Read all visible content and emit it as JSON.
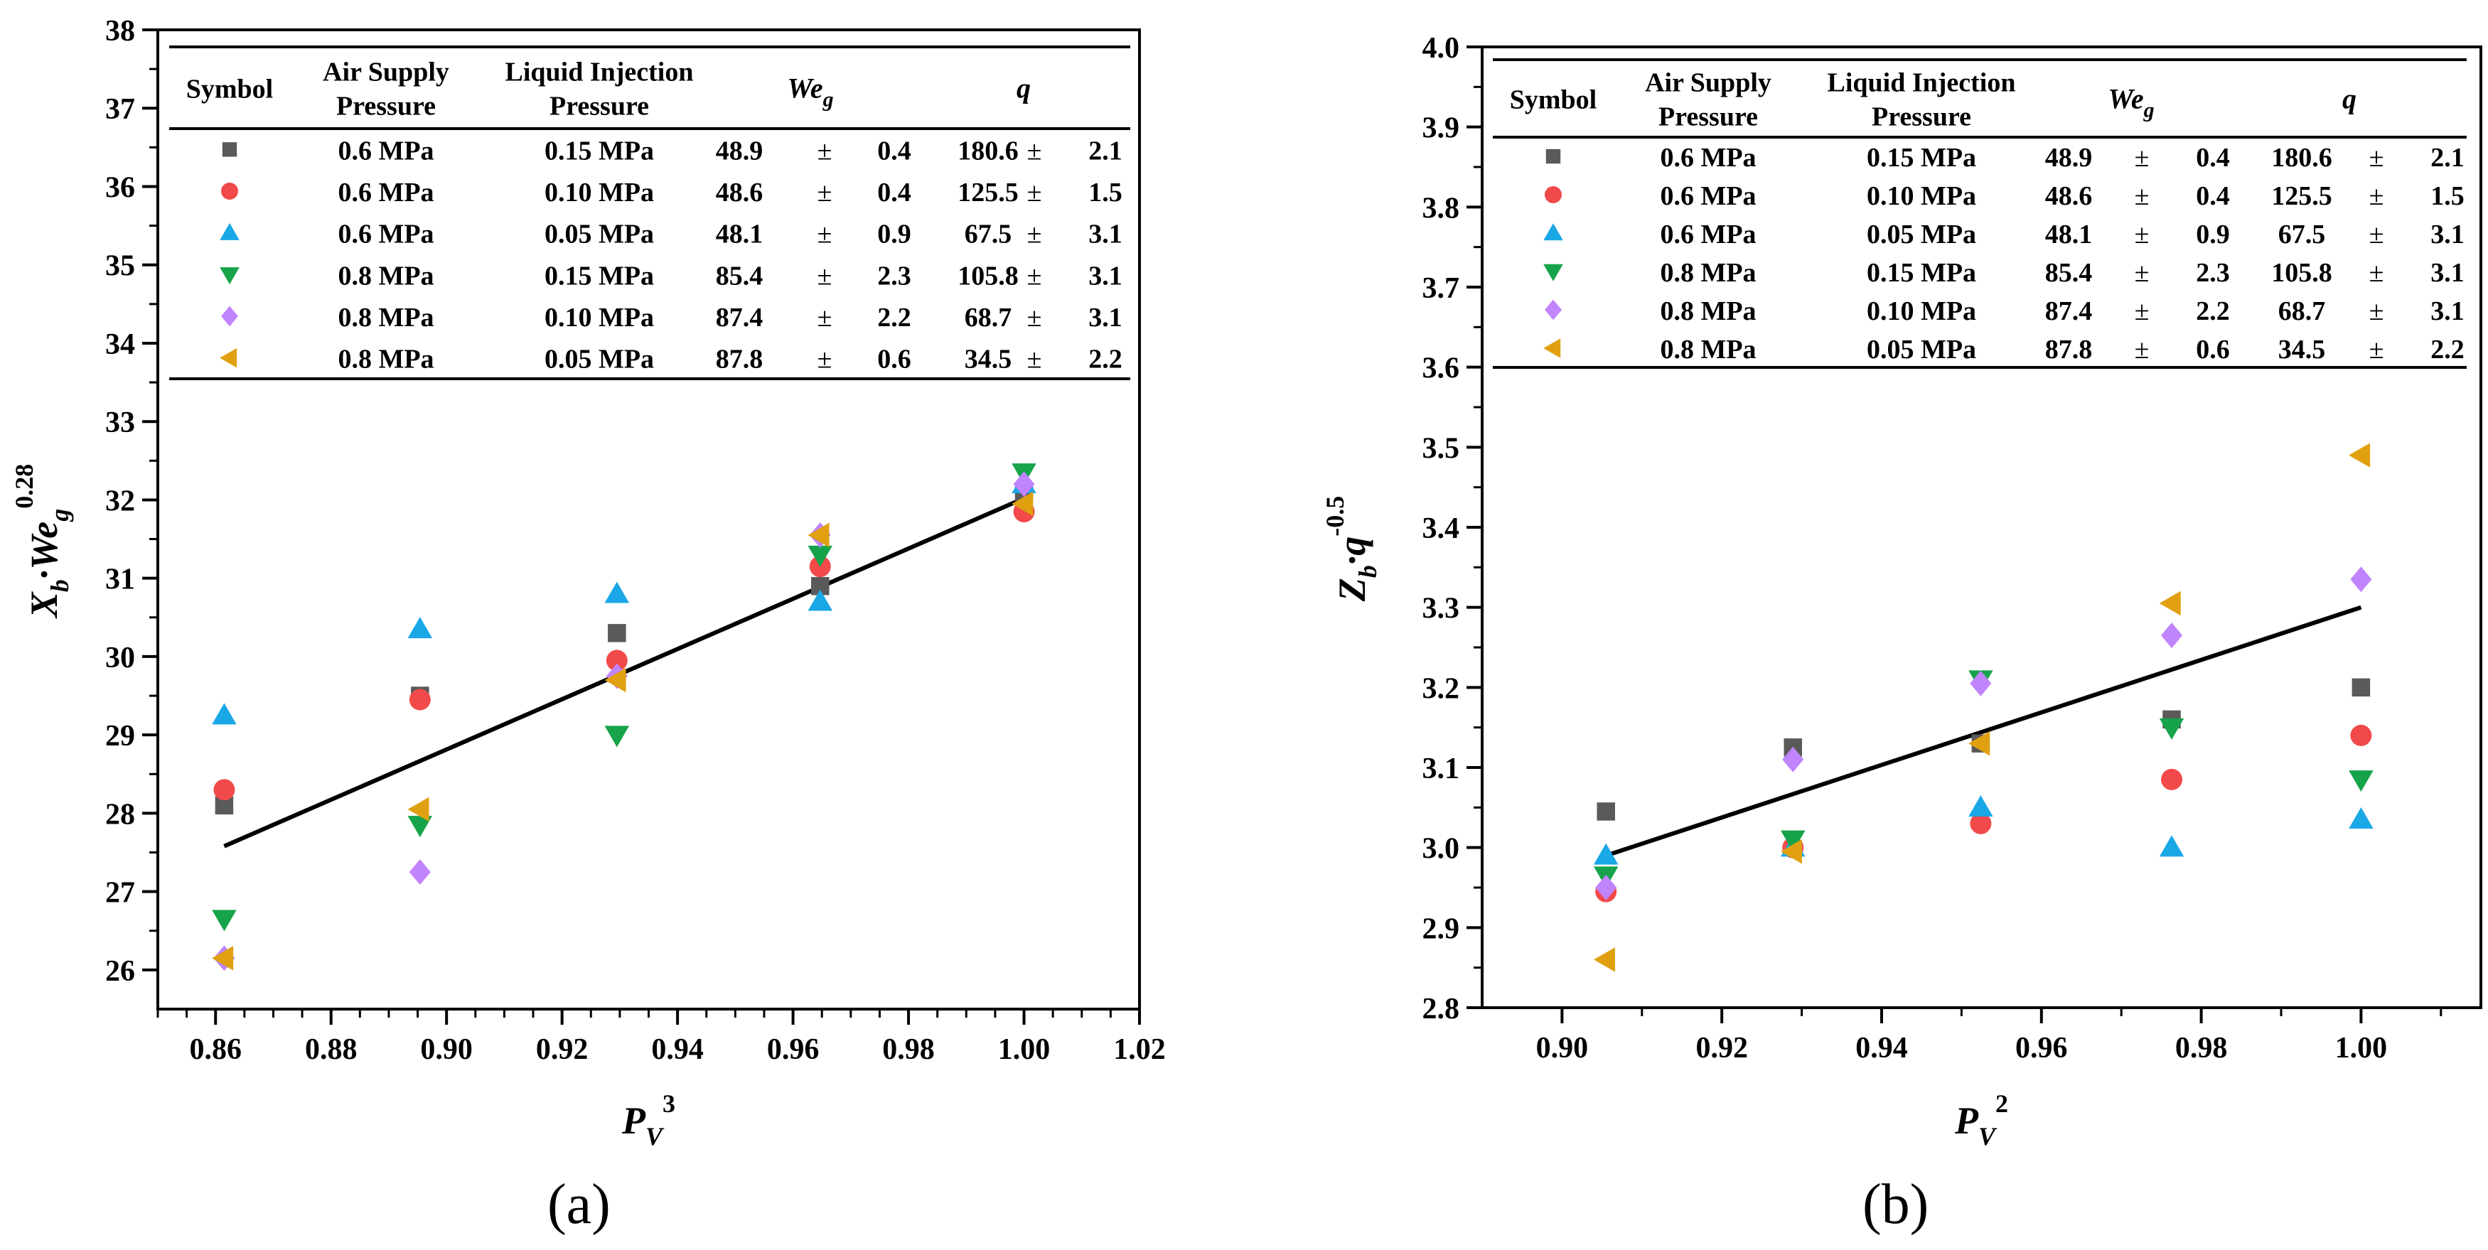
{
  "figure": {
    "panel_labels": [
      "(a)",
      "(b)"
    ]
  },
  "legend_header": {
    "symbol": "Symbol",
    "air_supply": [
      "Air Supply",
      "Pressure"
    ],
    "liquid_injection": [
      "Liquid Injection",
      "Pressure"
    ],
    "weg": "We",
    "weg_sub": "g",
    "q": "q"
  },
  "legend_rows": [
    {
      "marker": "square",
      "color": "#5a5a5a",
      "air": "0.6 MPa",
      "liquid": "0.15 MPa",
      "weg": "48.9",
      "weg_err": "0.4",
      "q": "180.6",
      "q_err": "2.1"
    },
    {
      "marker": "circle",
      "color": "#f24a4a",
      "air": "0.6 MPa",
      "liquid": "0.10 MPa",
      "weg": "48.6",
      "weg_err": "0.4",
      "q": "125.5",
      "q_err": "1.5"
    },
    {
      "marker": "triangle-up",
      "color": "#1aa7e6",
      "air": "0.6 MPa",
      "liquid": "0.05 MPa",
      "weg": "48.1",
      "weg_err": "0.9",
      "q": "67.5",
      "q_err": "3.1"
    },
    {
      "marker": "triangle-down",
      "color": "#16a34a",
      "air": "0.8 MPa",
      "liquid": "0.15 MPa",
      "weg": "85.4",
      "weg_err": "2.3",
      "q": "105.8",
      "q_err": "3.1"
    },
    {
      "marker": "diamond",
      "color": "#c084fc",
      "air": "0.8 MPa",
      "liquid": "0.10 MPa",
      "weg": "87.4",
      "weg_err": "2.2",
      "q": "68.7",
      "q_err": "3.1"
    },
    {
      "marker": "triangle-left",
      "color": "#e0a010",
      "air": "0.8 MPa",
      "liquid": "0.05 MPa",
      "weg": "87.8",
      "weg_err": "0.6",
      "q": "34.5",
      "q_err": "2.2"
    }
  ],
  "pm": "±",
  "chart_data": [
    {
      "type": "scatter",
      "panel": "(a)",
      "xlabel": "P_V^3",
      "xlabel_main": "P",
      "xlabel_sub": "V",
      "xlabel_sup": "3",
      "ylabel_main": "X",
      "ylabel_sub": "b",
      "ylabel_mid": "·We",
      "ylabel_sub2": "g",
      "ylabel_sup": "0.28",
      "xlim": [
        0.85,
        1.02
      ],
      "ylim": [
        25.5,
        38
      ],
      "xticks": [
        "0.86",
        "0.88",
        "0.90",
        "0.92",
        "0.94",
        "0.96",
        "0.98",
        "1.00",
        "1.02"
      ],
      "yticks": [
        "26",
        "27",
        "28",
        "29",
        "30",
        "31",
        "32",
        "33",
        "34",
        "35",
        "36",
        "37",
        "38"
      ],
      "x": [
        0.8615,
        0.8954,
        0.9295,
        0.9647,
        1.0
      ],
      "series": [
        {
          "name": "0.6 MPa / 0.15 MPa",
          "values": [
            28.1,
            29.5,
            30.3,
            30.9,
            32.1
          ]
        },
        {
          "name": "0.6 MPa / 0.10 MPa",
          "values": [
            28.3,
            29.45,
            29.95,
            31.15,
            31.85
          ]
        },
        {
          "name": "0.6 MPa / 0.05 MPa",
          "values": [
            29.25,
            30.35,
            30.8,
            30.7,
            32.2
          ]
        },
        {
          "name": "0.8 MPa / 0.15 MPa",
          "values": [
            26.65,
            27.85,
            29.0,
            31.3,
            32.35
          ]
        },
        {
          "name": "0.8 MPa / 0.10 MPa",
          "values": [
            26.15,
            27.25,
            29.75,
            31.55,
            32.2
          ]
        },
        {
          "name": "0.8 MPa / 0.05 MPa",
          "values": [
            26.15,
            28.05,
            29.7,
            31.55,
            31.95
          ]
        }
      ],
      "fit_line": {
        "x": [
          0.8615,
          1.0
        ],
        "y": [
          27.58,
          32.02
        ]
      }
    },
    {
      "type": "scatter",
      "panel": "(b)",
      "xlabel": "P_V^2",
      "xlabel_main": "P",
      "xlabel_sub": "V",
      "xlabel_sup": "2",
      "ylabel_main": "Z",
      "ylabel_sub": "b",
      "ylabel_mid": "·q",
      "ylabel_sup": "-0.5",
      "xlim": [
        0.89,
        1.015
      ],
      "ylim": [
        2.8,
        4.0
      ],
      "xticks": [
        "0.90",
        "0.92",
        "0.94",
        "0.96",
        "0.98",
        "1.00"
      ],
      "yticks": [
        "2.8",
        "2.9",
        "3.0",
        "3.1",
        "3.2",
        "3.3",
        "3.4",
        "3.5",
        "3.6",
        "3.7",
        "3.8",
        "3.9",
        "4.0"
      ],
      "x": [
        0.9055,
        0.9289,
        0.9524,
        0.9763,
        1.0
      ],
      "series": [
        {
          "name": "0.6 MPa / 0.15 MPa",
          "values": [
            3.045,
            3.125,
            3.13,
            3.16,
            3.2
          ]
        },
        {
          "name": "0.6 MPa / 0.10 MPa",
          "values": [
            2.945,
            3.0,
            3.03,
            3.085,
            3.14
          ]
        },
        {
          "name": "0.6 MPa / 0.05 MPa",
          "values": [
            2.99,
            3.0,
            3.05,
            3.0,
            3.035
          ]
        },
        {
          "name": "0.8 MPa / 0.15 MPa",
          "values": [
            2.965,
            3.01,
            3.21,
            3.15,
            3.085
          ]
        },
        {
          "name": "0.8 MPa / 0.10 MPa",
          "values": [
            2.95,
            3.11,
            3.205,
            3.265,
            3.335
          ]
        },
        {
          "name": "0.8 MPa / 0.05 MPa",
          "values": [
            2.86,
            2.995,
            3.13,
            3.305,
            3.49
          ]
        }
      ],
      "fit_line": {
        "x": [
          0.9055,
          1.0
        ],
        "y": [
          2.99,
          3.3
        ]
      }
    }
  ]
}
